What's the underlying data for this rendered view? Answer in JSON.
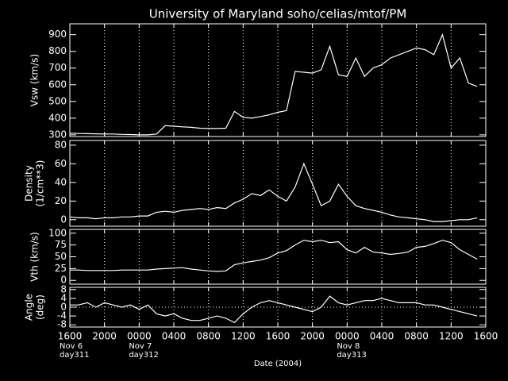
{
  "chart_data": {
    "type": "line",
    "title": "University of Maryland  soho/celias/mtof/PM",
    "xlabel": "Date (2004)",
    "color": "#ffffff",
    "xlim": [
      0,
      48
    ],
    "xticks": [
      {
        "value": 0,
        "label": "1600"
      },
      {
        "value": 4,
        "label": "2000"
      },
      {
        "value": 8,
        "label": "0000"
      },
      {
        "value": 12,
        "label": "0400"
      },
      {
        "value": 16,
        "label": "0800"
      },
      {
        "value": 20,
        "label": "1200"
      },
      {
        "value": 24,
        "label": "1600"
      },
      {
        "value": 28,
        "label": "2000"
      },
      {
        "value": 32,
        "label": "0000"
      },
      {
        "value": 36,
        "label": "0400"
      },
      {
        "value": 40,
        "label": "0800"
      },
      {
        "value": 44,
        "label": "1200"
      },
      {
        "value": 48,
        "label": "1600"
      }
    ],
    "date_labels": [
      {
        "value": 0,
        "lines": [
          "Nov 6",
          "day311"
        ]
      },
      {
        "value": 8,
        "lines": [
          "Nov 7",
          "day312"
        ]
      },
      {
        "value": 32,
        "lines": [
          "Nov 8",
          "day313"
        ]
      }
    ],
    "x": [
      0,
      1,
      2,
      3,
      4,
      5,
      6,
      7,
      8,
      9,
      10,
      11,
      12,
      13,
      14,
      15,
      16,
      17,
      18,
      19,
      20,
      21,
      22,
      23,
      24,
      25,
      26,
      27,
      28,
      29,
      30,
      31,
      32,
      33,
      34,
      35,
      36,
      37,
      38,
      39,
      40,
      41,
      42,
      43,
      44,
      45,
      46,
      47
    ],
    "panels": [
      {
        "ylabel": [
          "Vsw (km/s)"
        ],
        "ylim": [
          290,
          965
        ],
        "yticks": [
          300,
          400,
          500,
          600,
          700,
          800,
          900
        ],
        "values": [
          310,
          308,
          307,
          306,
          305,
          305,
          303,
          302,
          300,
          300,
          305,
          355,
          352,
          348,
          345,
          340,
          338,
          338,
          340,
          440,
          405,
          400,
          410,
          420,
          435,
          445,
          680,
          675,
          670,
          690,
          830,
          660,
          650,
          760,
          650,
          700,
          720,
          760,
          780,
          800,
          820,
          810,
          780,
          900,
          700,
          760,
          610,
          590
        ]
      },
      {
        "ylabel": [
          "Density",
          "(1/cm**3)"
        ],
        "ylim": [
          -7,
          85
        ],
        "yticks": [
          0,
          20,
          40,
          60,
          80
        ],
        "values": [
          3,
          2,
          2,
          1,
          2,
          2,
          3,
          3,
          4,
          4,
          8,
          9,
          8,
          10,
          11,
          12,
          11,
          13,
          12,
          18,
          22,
          28,
          26,
          32,
          25,
          20,
          35,
          60,
          38,
          15,
          20,
          38,
          25,
          15,
          12,
          10,
          8,
          5,
          3,
          2,
          1,
          0,
          -2,
          -2,
          -1,
          0,
          0,
          2
        ]
      },
      {
        "ylabel": [
          "Vth (km/s)"
        ],
        "ylim": [
          -8,
          108
        ],
        "yticks": [
          0,
          25,
          50,
          75,
          100
        ],
        "values": [
          22,
          22,
          21,
          21,
          21,
          21,
          22,
          22,
          22,
          22,
          24,
          25,
          26,
          27,
          24,
          22,
          20,
          19,
          20,
          33,
          37,
          40,
          43,
          48,
          58,
          63,
          75,
          85,
          82,
          85,
          80,
          82,
          65,
          58,
          70,
          60,
          58,
          55,
          57,
          60,
          70,
          72,
          78,
          85,
          80,
          65,
          55,
          45
        ]
      },
      {
        "ylabel": [
          "Angle",
          "(deg)"
        ],
        "ylim": [
          -9,
          9
        ],
        "yticks": [
          -8,
          -4,
          0,
          4,
          8
        ],
        "reference_line": 0,
        "values": [
          1,
          1,
          2,
          0,
          2,
          1,
          0,
          1,
          -1,
          1,
          -3,
          -4,
          -3,
          -5,
          -6,
          -6,
          -5,
          -4,
          -5,
          -7,
          -3,
          0,
          2,
          3,
          2,
          1,
          0,
          -1,
          -2,
          0,
          5,
          2,
          1,
          2,
          3,
          3,
          4,
          3,
          2,
          2,
          2,
          1,
          1,
          0,
          -1,
          -2,
          -3,
          -4
        ]
      }
    ]
  }
}
